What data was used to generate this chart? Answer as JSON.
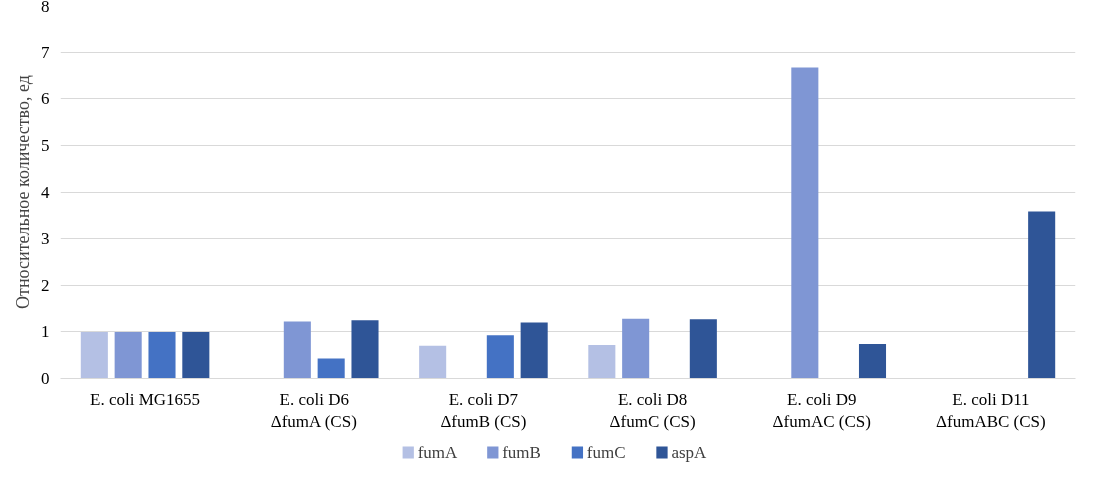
{
  "chart_data": {
    "type": "bar",
    "ylabel": "Относительное количество, ед",
    "categories": [
      "E. coli MG1655",
      "E. coli D6\nΔfumA (CS)",
      "E. coli D7\nΔfumB (CS)",
      "E. coli D8\nΔfumC (CS)",
      "E. coli D9\nΔfumAC (CS)",
      "E. coli D11\nΔfumABC (CS)"
    ],
    "series": [
      {
        "name": "fumA",
        "color": "#b4c0e4",
        "values": [
          1.0,
          null,
          0.7,
          0.72,
          null,
          null
        ]
      },
      {
        "name": "fumB",
        "color": "#7f96d4",
        "values": [
          1.0,
          1.22,
          null,
          1.28,
          6.67,
          null
        ]
      },
      {
        "name": "fumC",
        "color": "#4472c4",
        "values": [
          1.0,
          0.43,
          0.93,
          null,
          null,
          null
        ]
      },
      {
        "name": "aspA",
        "color": "#2f5597",
        "values": [
          1.0,
          1.25,
          1.2,
          1.27,
          0.74,
          3.58
        ]
      }
    ],
    "ylim": [
      0,
      8
    ],
    "yticks": [
      0,
      1,
      2,
      3,
      4,
      5,
      6,
      7,
      8
    ],
    "grid": "y",
    "legend": "bottom"
  }
}
